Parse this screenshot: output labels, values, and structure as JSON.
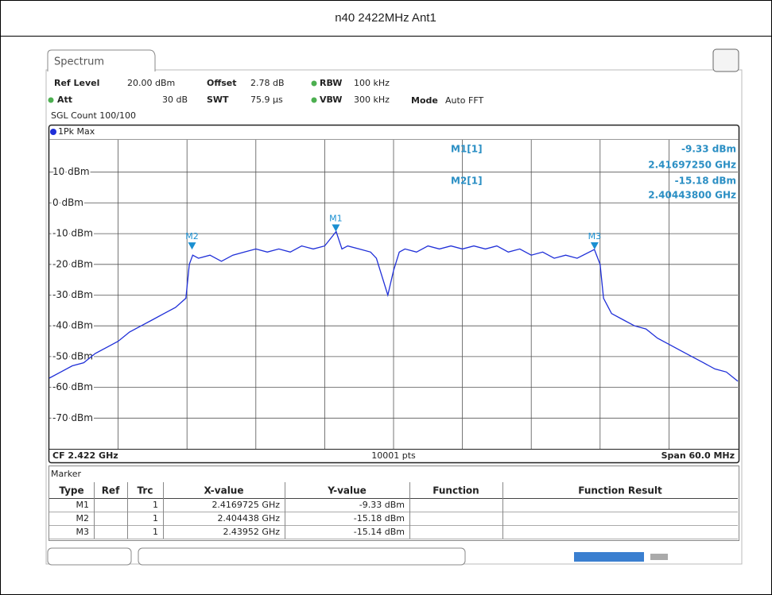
{
  "header": {
    "title": "n40 2422MHz Ant1"
  },
  "analyzer": {
    "tab": "Spectrum",
    "settings": {
      "ref_level": "Ref Level",
      "ref_level_value": "20.00 dBm",
      "offset": "Offset",
      "offset_value": "2.78 dB",
      "rbw": "RBW",
      "rbw_value": "100 kHz",
      "att": "Att",
      "att_value": "30 dB",
      "swt": "SWT",
      "swt_value": "75.9 µs",
      "vbw": "VBW",
      "vbw_value": "300 kHz",
      "mode": "Mode",
      "mode_value": "Auto FFT",
      "count": "SGL Count 100/100"
    },
    "readout": {
      "m1": "M1[1]",
      "m1_level": "-9.33 dBm",
      "m1_freq": "2.41697250 GHz",
      "m2": "M2[1]",
      "m2_level": "-15.18 dBm",
      "m2_freq": "2.40443800 GHz"
    },
    "footer": {
      "center": "CF 2.422 GHz",
      "points": "10001 pts",
      "span": "Span 60.0 MHz"
    },
    "marker_table": {
      "title": "Marker",
      "columns": [
        "Type",
        "Ref",
        "Trc",
        "X-value",
        "Y-value",
        "Function",
        "Function Result"
      ],
      "rows": [
        {
          "type": "M1",
          "trc": "1",
          "x": "2.4169725 GHz",
          "y": "-9.33 dBm"
        },
        {
          "type": "M2",
          "trc": "1",
          "x": "2.404438 GHz",
          "y": "-15.18 dBm"
        },
        {
          "type": "M3",
          "trc": "1",
          "x": "2.43952 GHz",
          "y": "-15.14 dBm"
        }
      ]
    }
  },
  "chart_data": {
    "type": "line",
    "xlim": [
      2.392,
      2.452
    ],
    "ylim": [
      -80,
      20
    ],
    "yticks": [
      {
        "value": 10,
        "label": "10 dBm"
      },
      {
        "value": 0,
        "label": "0 dBm"
      },
      {
        "value": -10,
        "label": "-10 dBm"
      },
      {
        "value": -20,
        "label": "-20 dBm"
      },
      {
        "value": -30,
        "label": "-30 dBm"
      },
      {
        "value": -40,
        "label": "-40 dBm"
      },
      {
        "value": -50,
        "label": "-50 dBm"
      },
      {
        "value": -60,
        "label": "-60 dBm"
      },
      {
        "value": -70,
        "label": "-70 dBm"
      }
    ],
    "grid": true,
    "x": [
      2.392,
      2.393,
      2.394,
      2.395,
      2.396,
      2.397,
      2.398,
      2.399,
      2.4,
      2.401,
      2.402,
      2.403,
      2.4039,
      2.4042,
      2.4045,
      2.405,
      2.406,
      2.407,
      2.408,
      2.409,
      2.41,
      2.411,
      2.412,
      2.413,
      2.414,
      2.415,
      2.416,
      2.417,
      2.4175,
      2.418,
      2.419,
      2.42,
      2.4205,
      2.421,
      2.4215,
      2.422,
      2.4225,
      2.423,
      2.424,
      2.425,
      2.426,
      2.427,
      2.428,
      2.429,
      2.43,
      2.431,
      2.432,
      2.433,
      2.434,
      2.435,
      2.436,
      2.437,
      2.438,
      2.4395,
      2.44,
      2.4403,
      2.441,
      2.442,
      2.443,
      2.444,
      2.445,
      2.446,
      2.447,
      2.448,
      2.449,
      2.45,
      2.451,
      2.452
    ],
    "series": [
      {
        "name": "1Pk Max",
        "color": "#1f2fd8",
        "values": [
          -57,
          -55,
          -53,
          -52,
          -49,
          -47,
          -45,
          -42,
          -40,
          -38,
          -36,
          -34,
          -31,
          -20,
          -17,
          -18,
          -17,
          -19,
          -17,
          -16,
          -15,
          -16,
          -15,
          -16,
          -14,
          -15,
          -14,
          -9.33,
          -15,
          -14,
          -15,
          -16,
          -18,
          -24,
          -30,
          -22,
          -16,
          -15,
          -16,
          -14,
          -15,
          -14,
          -15,
          -14,
          -15,
          -14,
          -16,
          -15,
          -17,
          -16,
          -18,
          -17,
          -18,
          -15.14,
          -20,
          -31,
          -36,
          -38,
          -40,
          -41,
          -44,
          -46,
          -48,
          -50,
          -52,
          -54,
          -55,
          -58
        ]
      }
    ],
    "marker_color": "#1a8fd1",
    "markers": [
      {
        "name": "M1",
        "x": 2.4169725,
        "y": -9.33
      },
      {
        "name": "M2",
        "x": 2.404438,
        "y": -15.18
      },
      {
        "name": "M3",
        "x": 2.43952,
        "y": -15.14
      }
    ]
  }
}
